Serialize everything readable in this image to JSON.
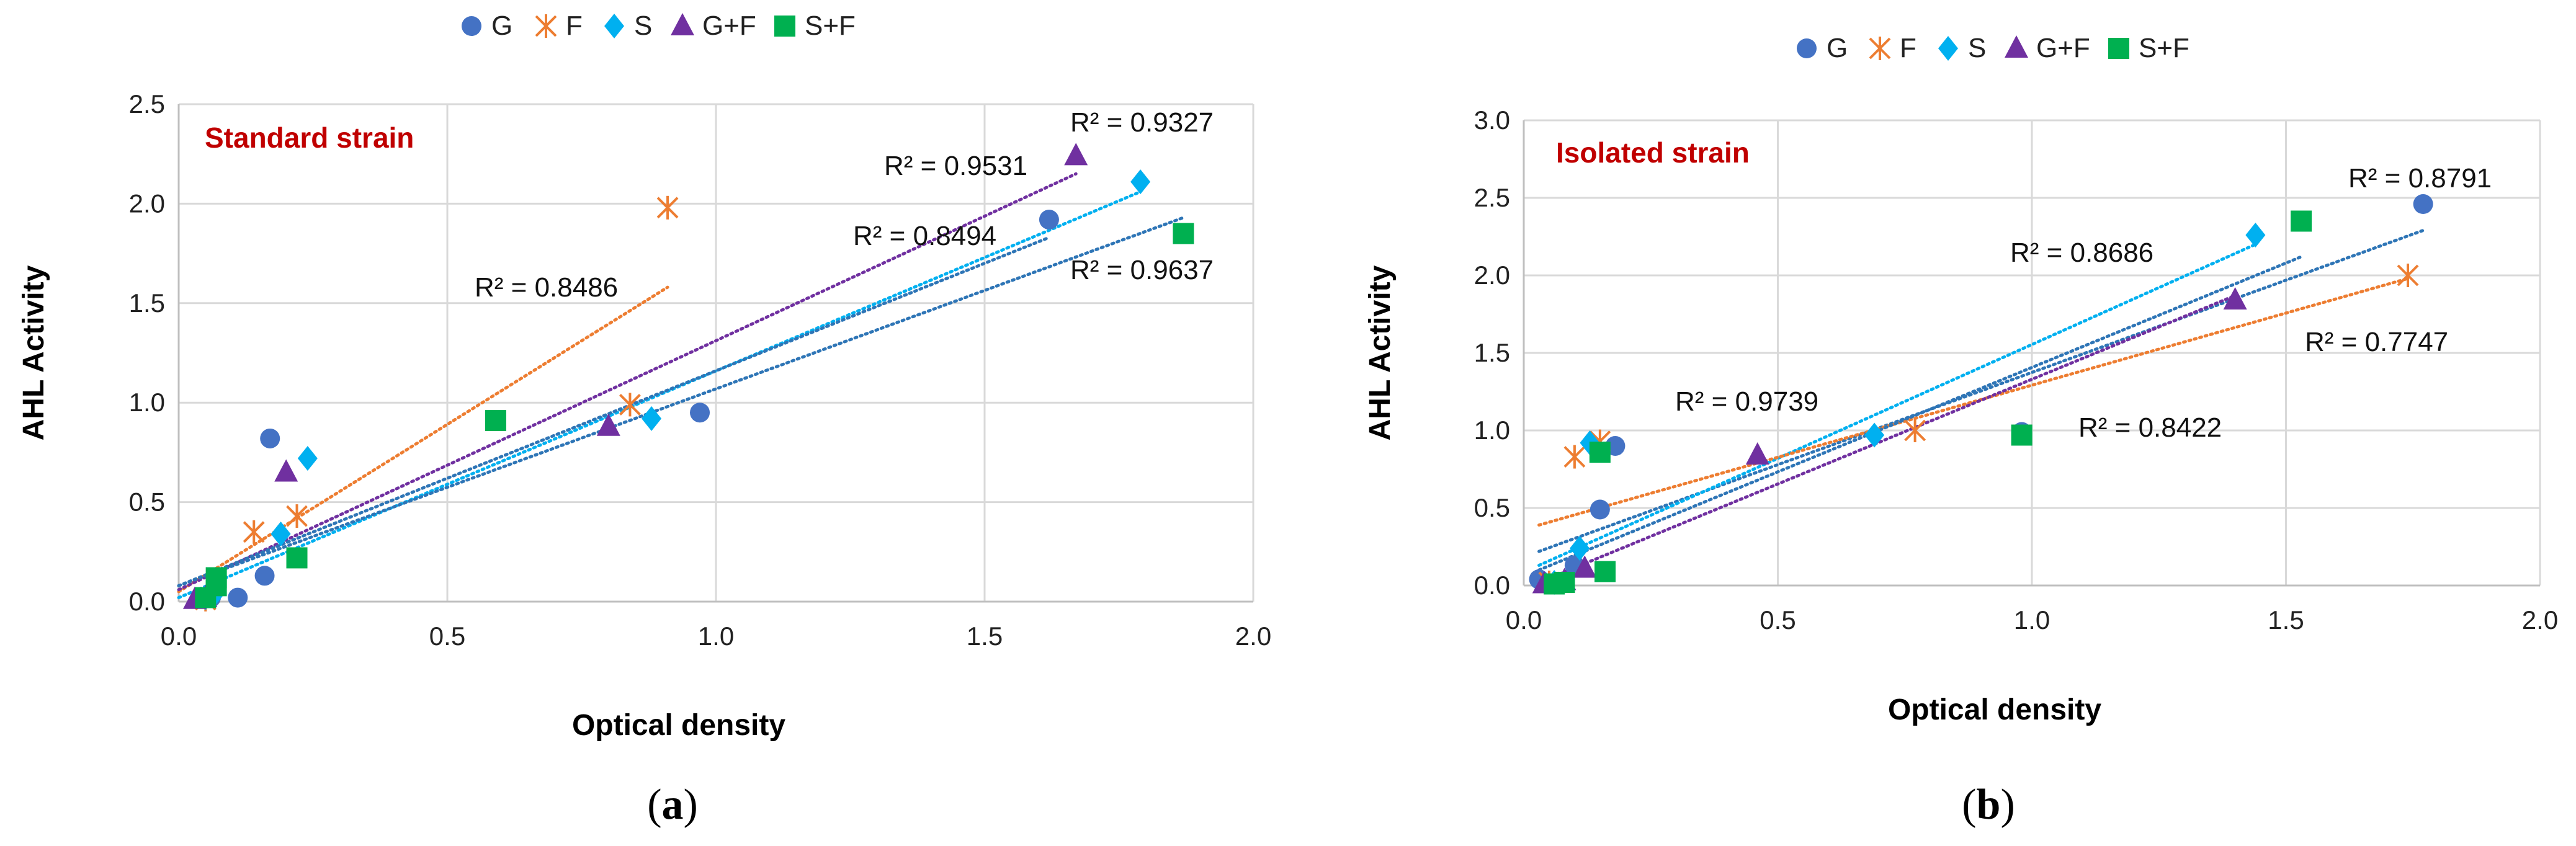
{
  "colors": {
    "G": "#4472c4",
    "F": "#ed7d31",
    "S": "#00b0f0",
    "G+F": "#7030a0",
    "S+F": "#00b050",
    "trend_blue": "#2e75b6",
    "trend_cyan": "#00b0f0",
    "trend_orange": "#ed7d31",
    "trend_purple": "#7030a0"
  },
  "chart_data": [
    {
      "type": "scatter",
      "panel_label": "(a)",
      "panel_letter": "a",
      "annotation": "Standard strain",
      "xlabel": "Optical density",
      "ylabel": "AHL Activity",
      "xlim": [
        0,
        2.0
      ],
      "ylim": [
        0,
        2.5
      ],
      "xticks": [
        "0.0",
        "0.5",
        "1.0",
        "1.5",
        "2.0"
      ],
      "yticks": [
        "0.0",
        "0.5",
        "1.0",
        "1.5",
        "2.0",
        "2.5"
      ],
      "xtick_values": [
        0,
        0.5,
        1.0,
        1.5,
        2.0
      ],
      "ytick_values": [
        0,
        0.5,
        1.0,
        1.5,
        2.0,
        2.5
      ],
      "legend": [
        "G",
        "F",
        "S",
        "G+F",
        "S+F"
      ],
      "series": [
        {
          "name": "G",
          "marker": "circle",
          "points": [
            [
              0.06,
              0.02
            ],
            [
              0.11,
              0.02
            ],
            [
              0.16,
              0.13
            ],
            [
              0.17,
              0.82
            ],
            [
              0.97,
              0.95
            ],
            [
              1.62,
              1.92
            ]
          ]
        },
        {
          "name": "F",
          "marker": "star",
          "points": [
            [
              0.05,
              0.01
            ],
            [
              0.14,
              0.35
            ],
            [
              0.22,
              0.43
            ],
            [
              0.84,
              0.99
            ],
            [
              0.91,
              1.98
            ]
          ]
        },
        {
          "name": "S",
          "marker": "diamond",
          "points": [
            [
              0.05,
              0.02
            ],
            [
              0.07,
              0.05
            ],
            [
              0.19,
              0.34
            ],
            [
              0.24,
              0.72
            ],
            [
              0.88,
              0.92
            ],
            [
              1.79,
              2.11
            ]
          ]
        },
        {
          "name": "G+F",
          "marker": "triangle",
          "points": [
            [
              0.03,
              0.01
            ],
            [
              0.05,
              0.02
            ],
            [
              0.2,
              0.65
            ],
            [
              0.8,
              0.88
            ],
            [
              1.67,
              2.24
            ]
          ]
        },
        {
          "name": "S+F",
          "marker": "square",
          "points": [
            [
              0.05,
              0.02
            ],
            [
              0.07,
              0.12
            ],
            [
              0.07,
              0.08
            ],
            [
              0.22,
              0.22
            ],
            [
              0.59,
              0.91
            ],
            [
              1.87,
              1.85
            ]
          ]
        }
      ],
      "trendlines": [
        {
          "series": "F",
          "r2_label": "R² = 0.8486",
          "color_key": "trend_orange",
          "x": [
            0.0,
            0.91
          ],
          "y": [
            0.05,
            1.58
          ]
        },
        {
          "series": "G+F",
          "r2_label": "R² = 0.9531",
          "color_key": "trend_purple",
          "x": [
            0.0,
            1.67
          ],
          "y": [
            0.06,
            2.15
          ]
        },
        {
          "series": "S",
          "r2_label": "R² = 0.9327",
          "color_key": "trend_cyan",
          "x": [
            0.0,
            1.79
          ],
          "y": [
            0.02,
            2.06
          ]
        },
        {
          "series": "G",
          "r2_label": "R² = 0.8494",
          "color_key": "trend_blue",
          "x": [
            0.0,
            1.62
          ],
          "y": [
            0.08,
            1.83
          ]
        },
        {
          "series": "S+F",
          "r2_label": "R² = 0.9637",
          "color_key": "trend_blue",
          "x": [
            0.0,
            1.87
          ],
          "y": [
            0.08,
            1.93
          ]
        }
      ]
    },
    {
      "type": "scatter",
      "panel_label": "(b)",
      "panel_letter": "b",
      "annotation": "Isolated strain",
      "xlabel": "Optical density",
      "ylabel": "AHL Activity",
      "xlim": [
        0,
        2.0
      ],
      "ylim": [
        0,
        3.0
      ],
      "xticks": [
        "0.0",
        "0.5",
        "1.0",
        "1.5",
        "2.0"
      ],
      "yticks": [
        "0.0",
        "0.5",
        "1.0",
        "1.5",
        "2.0",
        "2.5",
        "3.0"
      ],
      "xtick_values": [
        0,
        0.5,
        1.0,
        1.5,
        2.0
      ],
      "ytick_values": [
        0,
        0.5,
        1.0,
        1.5,
        2.0,
        2.5,
        3.0
      ],
      "legend": [
        "G",
        "F",
        "S",
        "G+F",
        "S+F"
      ],
      "series": [
        {
          "name": "G",
          "marker": "circle",
          "points": [
            [
              0.03,
              0.04
            ],
            [
              0.1,
              0.13
            ],
            [
              0.15,
              0.49
            ],
            [
              0.18,
              0.9
            ],
            [
              0.98,
              0.99
            ],
            [
              1.77,
              2.46
            ]
          ]
        },
        {
          "name": "F",
          "marker": "star",
          "points": [
            [
              0.05,
              0.02
            ],
            [
              0.1,
              0.83
            ],
            [
              0.15,
              0.93
            ],
            [
              0.77,
              1.0
            ],
            [
              1.74,
              2.0
            ]
          ]
        },
        {
          "name": "S",
          "marker": "diamond",
          "points": [
            [
              0.06,
              0.02
            ],
            [
              0.11,
              0.24
            ],
            [
              0.13,
              0.92
            ],
            [
              0.69,
              0.97
            ],
            [
              1.44,
              2.26
            ]
          ]
        },
        {
          "name": "G+F",
          "marker": "triangle",
          "points": [
            [
              0.04,
              0.01
            ],
            [
              0.08,
              0.03
            ],
            [
              0.12,
              0.11
            ],
            [
              0.46,
              0.84
            ],
            [
              1.4,
              1.84
            ]
          ]
        },
        {
          "name": "S+F",
          "marker": "square",
          "points": [
            [
              0.06,
              0.01
            ],
            [
              0.08,
              0.02
            ],
            [
              0.15,
              0.86
            ],
            [
              0.16,
              0.09
            ],
            [
              0.98,
              0.97
            ],
            [
              1.53,
              2.35
            ]
          ]
        }
      ],
      "trendlines": [
        {
          "series": "G",
          "r2_label": "R² = 0.8791",
          "color_key": "trend_blue",
          "x": [
            0.03,
            1.77
          ],
          "y": [
            0.22,
            2.29
          ]
        },
        {
          "series": "S",
          "r2_label": "R² = 0.8686",
          "color_key": "trend_cyan",
          "x": [
            0.03,
            1.44
          ],
          "y": [
            0.13,
            2.2
          ]
        },
        {
          "series": "F",
          "r2_label": "R² = 0.7747",
          "color_key": "trend_orange",
          "x": [
            0.03,
            1.74
          ],
          "y": [
            0.39,
            1.98
          ]
        },
        {
          "series": "G+F",
          "r2_label": "R² = 0.9739",
          "color_key": "trend_purple",
          "x": [
            0.03,
            1.4
          ],
          "y": [
            0.02,
            1.87
          ]
        },
        {
          "series": "S+F",
          "r2_label": "R² = 0.8422",
          "color_key": "trend_blue",
          "x": [
            0.03,
            1.53
          ],
          "y": [
            0.1,
            2.12
          ]
        }
      ]
    }
  ]
}
